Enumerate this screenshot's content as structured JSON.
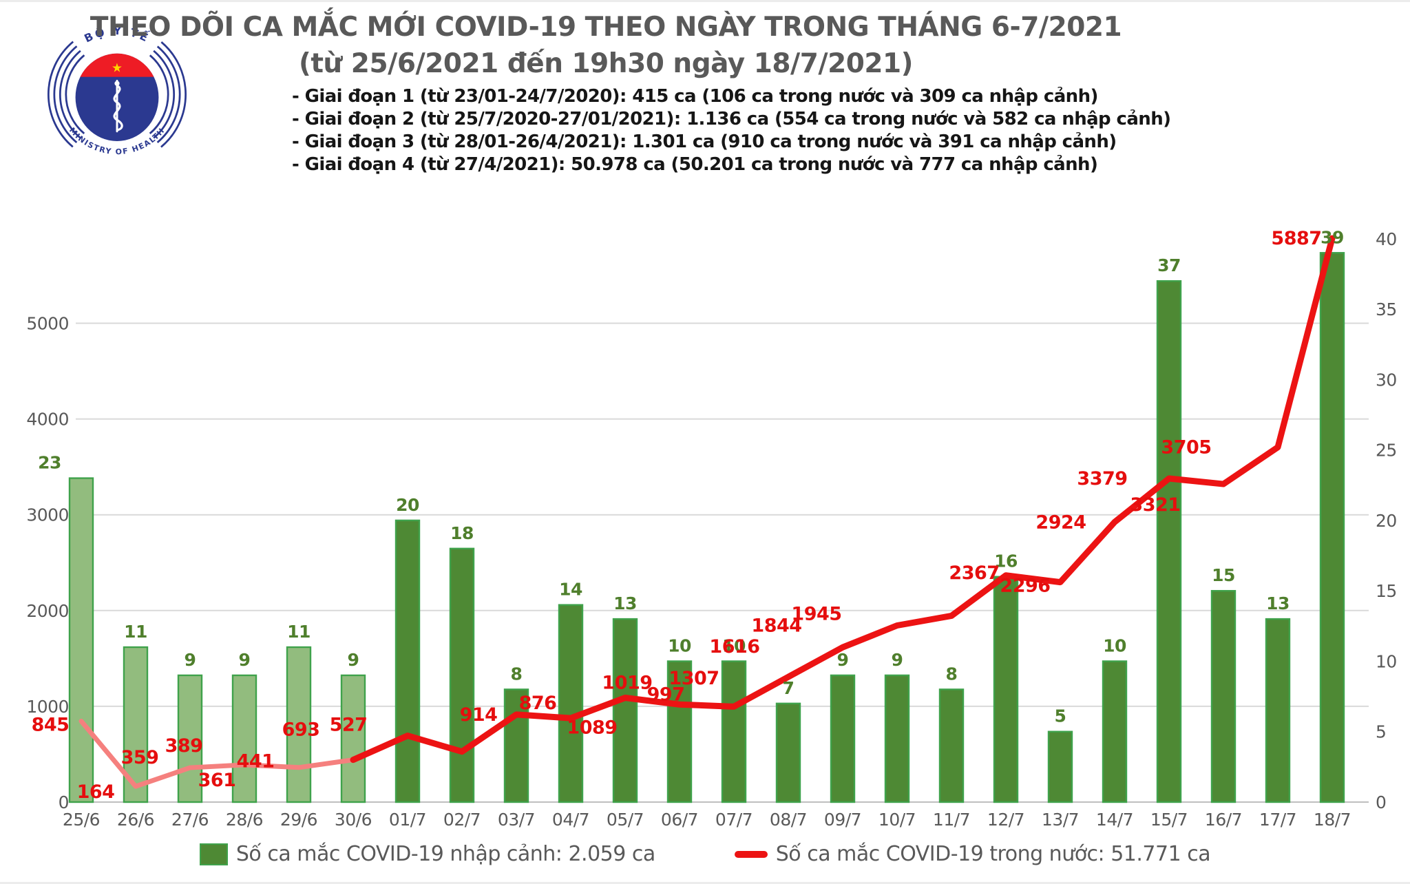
{
  "header": {
    "logo": {
      "top_arc": "BỘ Y TẾ",
      "bottom_arc": "MINISTRY OF HEALTH"
    },
    "title_line1": "THEO DÕI CA MẮC MỚI COVID-19 THEO NGÀY TRONG THÁNG 6-7/2021",
    "title_line2": "(từ 25/6/2021 đến 19h30 ngày 18/7/2021)",
    "notes": [
      "- Giai đoạn 1 (từ 23/01-24/7/2020): 415 ca (106 ca trong nước và 309 ca nhập cảnh)",
      "- Giai đoạn 2 (từ 25/7/2020-27/01/2021): 1.136 ca (554 ca trong nước và 582 ca nhập cảnh)",
      "- Giai đoạn 3 (từ 28/01-26/4/2021): 1.301 ca (910 ca trong nước và 391 ca nhập cảnh)",
      "- Giai đoạn 4 (từ 27/4/2021): 50.978 ca (50.201 ca trong nước và 777 ca nhập cảnh)"
    ]
  },
  "chart_data": {
    "type": "bar+line",
    "categories": [
      "25/6",
      "26/6",
      "27/6",
      "28/6",
      "29/6",
      "30/6",
      "01/7",
      "02/7",
      "03/7",
      "04/7",
      "05/7",
      "06/7",
      "07/7",
      "08/7",
      "09/7",
      "10/7",
      "11/7",
      "12/7",
      "13/7",
      "14/7",
      "15/7",
      "16/7",
      "17/7",
      "18/7"
    ],
    "series": [
      {
        "name": "Số ca mắc COVID-19 nhập cảnh",
        "chart": "bar",
        "axis": "right",
        "values": [
          23,
          11,
          9,
          9,
          11,
          9,
          20,
          18,
          8,
          14,
          13,
          10,
          10,
          7,
          9,
          9,
          8,
          16,
          5,
          10,
          37,
          15,
          13,
          39
        ]
      },
      {
        "name": "Số ca mắc COVID-19 trong nước",
        "chart": "line",
        "axis": "left",
        "values": [
          845,
          164,
          359,
          389,
          361,
          441,
          693,
          527,
          914,
          876,
          1089,
          1019,
          997,
          1307,
          1616,
          1844,
          1945,
          2367,
          2296,
          2924,
          3379,
          3321,
          3705,
          5887
        ]
      }
    ],
    "left_axis": {
      "ticks": [
        0,
        1000,
        2000,
        3000,
        4000,
        5000
      ],
      "max": 5890
    },
    "right_axis": {
      "ticks": [
        0,
        5,
        10,
        15,
        20,
        25,
        30,
        35,
        40
      ],
      "max": 40
    },
    "style_split": {
      "june_points": 6,
      "note": "first 6 bars lighter green with green border; domestic line drawn pink through 30/6, bright red afterwards"
    },
    "grid": "horizontal-left-axis",
    "legend_position": "bottom"
  },
  "legend": {
    "items": [
      {
        "swatch": "bar",
        "text": "Số ca mắc COVID-19 nhập cảnh: 2.059 ca"
      },
      {
        "swatch": "line",
        "text": "Số ca mắc COVID-19 trong nước: 51.771 ca"
      }
    ]
  },
  "colors": {
    "bar_july": "#4E8934",
    "bar_june_fill": "#92BC7E",
    "bar_border": "#3FA24B",
    "line_july": "#EC1313",
    "line_june": "#F5807E",
    "bar_label": "#4F7F2C",
    "line_label": "#E50E0E",
    "axis_text": "#595959",
    "gridline": "#D9D9D9",
    "baseline": "#BFBFBF",
    "title": "#595959",
    "legend_text": "#595959",
    "logo_navy": "#2B3990",
    "logo_red": "#EE1C25",
    "logo_star": "#FFD500"
  }
}
